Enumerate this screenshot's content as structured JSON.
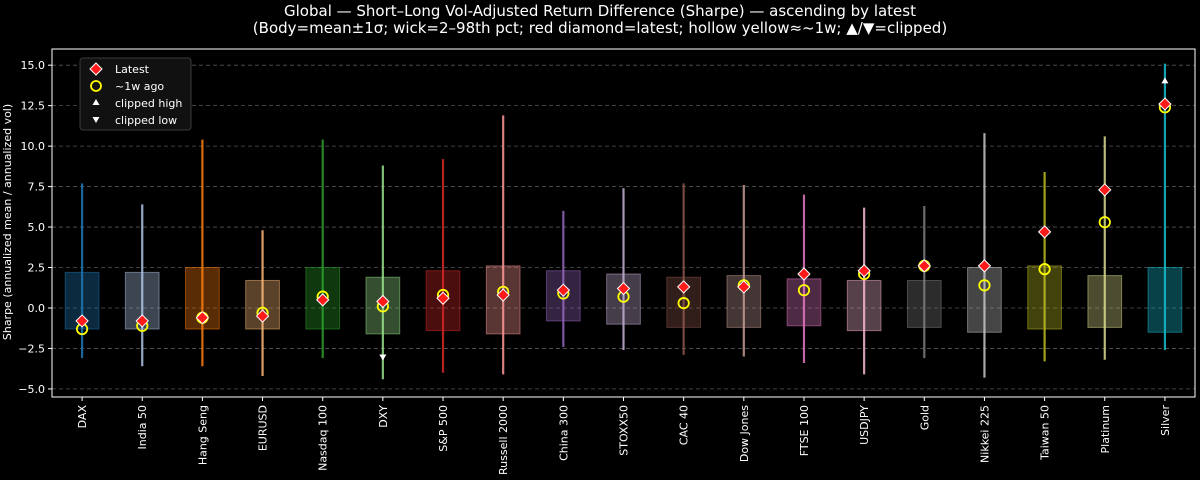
{
  "chart_data": {
    "type": "box",
    "title": "Global — Short–Long Vol-Adjusted Return Difference (Sharpe) — ascending by latest",
    "subtitle": "(Body=mean±1σ; wick=2–98th pct; red diamond=latest; hollow yellow≈~1w; ▲/▼=clipped)",
    "ylabel": "Sharpe (annualized mean / annualized vol)",
    "xlabel": "",
    "ylim": [
      -5.5,
      16.0
    ],
    "yticks": [
      -5.0,
      -2.5,
      0.0,
      2.5,
      5.0,
      7.5,
      10.0,
      12.5,
      15.0
    ],
    "ytick_labels": [
      "−5.0",
      "−2.5",
      "0.0",
      "2.5",
      "5.0",
      "7.5",
      "10.0",
      "12.5",
      "15.0"
    ],
    "grid": "y-dashed",
    "legend_position": "top-left",
    "legend": {
      "latest": "Latest",
      "week_ago": "~1w ago",
      "clipped_high": "clipped high",
      "clipped_low": "clipped low"
    },
    "colors": {
      "latest_marker": "#ff1a1a",
      "week_ago_marker": "#ffff00",
      "grid": "#555555",
      "background": "#000000"
    },
    "categories": [
      "DAX",
      "India 50",
      "Hang Seng",
      "EURUSD",
      "Nasdaq 100",
      "DXY",
      "S&P 500",
      "Russell 2000",
      "China 300",
      "STOXX50",
      "CAC 40",
      "Dow Jones",
      "FTSE 100",
      "USDJPY",
      "Gold",
      "Nikkei 225",
      "Taiwan 50",
      "Platinum",
      "Silver"
    ],
    "series": [
      {
        "color": "#1f77b4",
        "body_low": -1.3,
        "body_high": 2.2,
        "wick_low": -3.1,
        "wick_high": 7.7,
        "latest": -0.8,
        "week_ago": -1.3,
        "clipped": "none"
      },
      {
        "color": "#aec7e8",
        "body_low": -1.3,
        "body_high": 2.2,
        "wick_low": -3.6,
        "wick_high": 6.4,
        "latest": -0.8,
        "week_ago": -1.1,
        "clipped": "none"
      },
      {
        "color": "#ff7f0e",
        "body_low": -1.3,
        "body_high": 2.5,
        "wick_low": -3.6,
        "wick_high": 10.4,
        "latest": -0.6,
        "week_ago": -0.6,
        "clipped": "none"
      },
      {
        "color": "#ffbb78",
        "body_low": -1.3,
        "body_high": 1.7,
        "wick_low": -4.2,
        "wick_high": 4.8,
        "latest": -0.5,
        "week_ago": -0.3,
        "clipped": "none"
      },
      {
        "color": "#2ca02c",
        "body_low": -1.3,
        "body_high": 2.5,
        "wick_low": -3.1,
        "wick_high": 10.4,
        "latest": 0.5,
        "week_ago": 0.7,
        "clipped": "none"
      },
      {
        "color": "#98df8a",
        "body_low": -1.6,
        "body_high": 1.9,
        "wick_low": -4.4,
        "wick_high": 8.8,
        "latest": 0.4,
        "week_ago": 0.1,
        "clipped": "low"
      },
      {
        "color": "#d62728",
        "body_low": -1.4,
        "body_high": 2.3,
        "wick_low": -4.0,
        "wick_high": 9.2,
        "latest": 0.6,
        "week_ago": 0.8,
        "clipped": "none"
      },
      {
        "color": "#ff9896",
        "body_low": -1.6,
        "body_high": 2.6,
        "wick_low": -4.1,
        "wick_high": 11.9,
        "latest": 0.8,
        "week_ago": 1.0,
        "clipped": "none"
      },
      {
        "color": "#9467bd",
        "body_low": -0.8,
        "body_high": 2.3,
        "wick_low": -2.4,
        "wick_high": 6.0,
        "latest": 1.1,
        "week_ago": 0.9,
        "clipped": "none"
      },
      {
        "color": "#c5b0d5",
        "body_low": -1.0,
        "body_high": 2.1,
        "wick_low": -2.6,
        "wick_high": 7.4,
        "latest": 1.2,
        "week_ago": 0.7,
        "clipped": "none"
      },
      {
        "color": "#8c564b",
        "body_low": -1.2,
        "body_high": 1.9,
        "wick_low": -2.9,
        "wick_high": 7.7,
        "latest": 1.3,
        "week_ago": 0.3,
        "clipped": "none"
      },
      {
        "color": "#c49c94",
        "body_low": -1.2,
        "body_high": 2.0,
        "wick_low": -3.0,
        "wick_high": 7.6,
        "latest": 1.3,
        "week_ago": 1.4,
        "clipped": "none"
      },
      {
        "color": "#e377c2",
        "body_low": -1.1,
        "body_high": 1.8,
        "wick_low": -3.4,
        "wick_high": 7.0,
        "latest": 2.1,
        "week_ago": 1.1,
        "clipped": "none"
      },
      {
        "color": "#f7b6d2",
        "body_low": -1.4,
        "body_high": 1.7,
        "wick_low": -4.1,
        "wick_high": 6.2,
        "latest": 2.3,
        "week_ago": 2.1,
        "clipped": "none"
      },
      {
        "color": "#7f7f7f",
        "body_low": -1.2,
        "body_high": 1.7,
        "wick_low": -3.1,
        "wick_high": 6.3,
        "latest": 2.6,
        "week_ago": 2.6,
        "clipped": "none"
      },
      {
        "color": "#c7c7c7",
        "body_low": -1.5,
        "body_high": 2.5,
        "wick_low": -4.3,
        "wick_high": 10.8,
        "latest": 2.6,
        "week_ago": 1.4,
        "clipped": "none"
      },
      {
        "color": "#bcbd22",
        "body_low": -1.3,
        "body_high": 2.6,
        "wick_low": -3.3,
        "wick_high": 8.4,
        "latest": 4.7,
        "week_ago": 2.4,
        "clipped": "none"
      },
      {
        "color": "#dbdb8d",
        "body_low": -1.2,
        "body_high": 2.0,
        "wick_low": -3.2,
        "wick_high": 10.6,
        "latest": 7.3,
        "week_ago": 5.3,
        "clipped": "none"
      },
      {
        "color": "#17becf",
        "body_low": -1.5,
        "body_high": 2.5,
        "wick_low": -2.6,
        "wick_high": 15.1,
        "latest": 12.6,
        "week_ago": 12.4,
        "clipped": "high"
      }
    ]
  }
}
